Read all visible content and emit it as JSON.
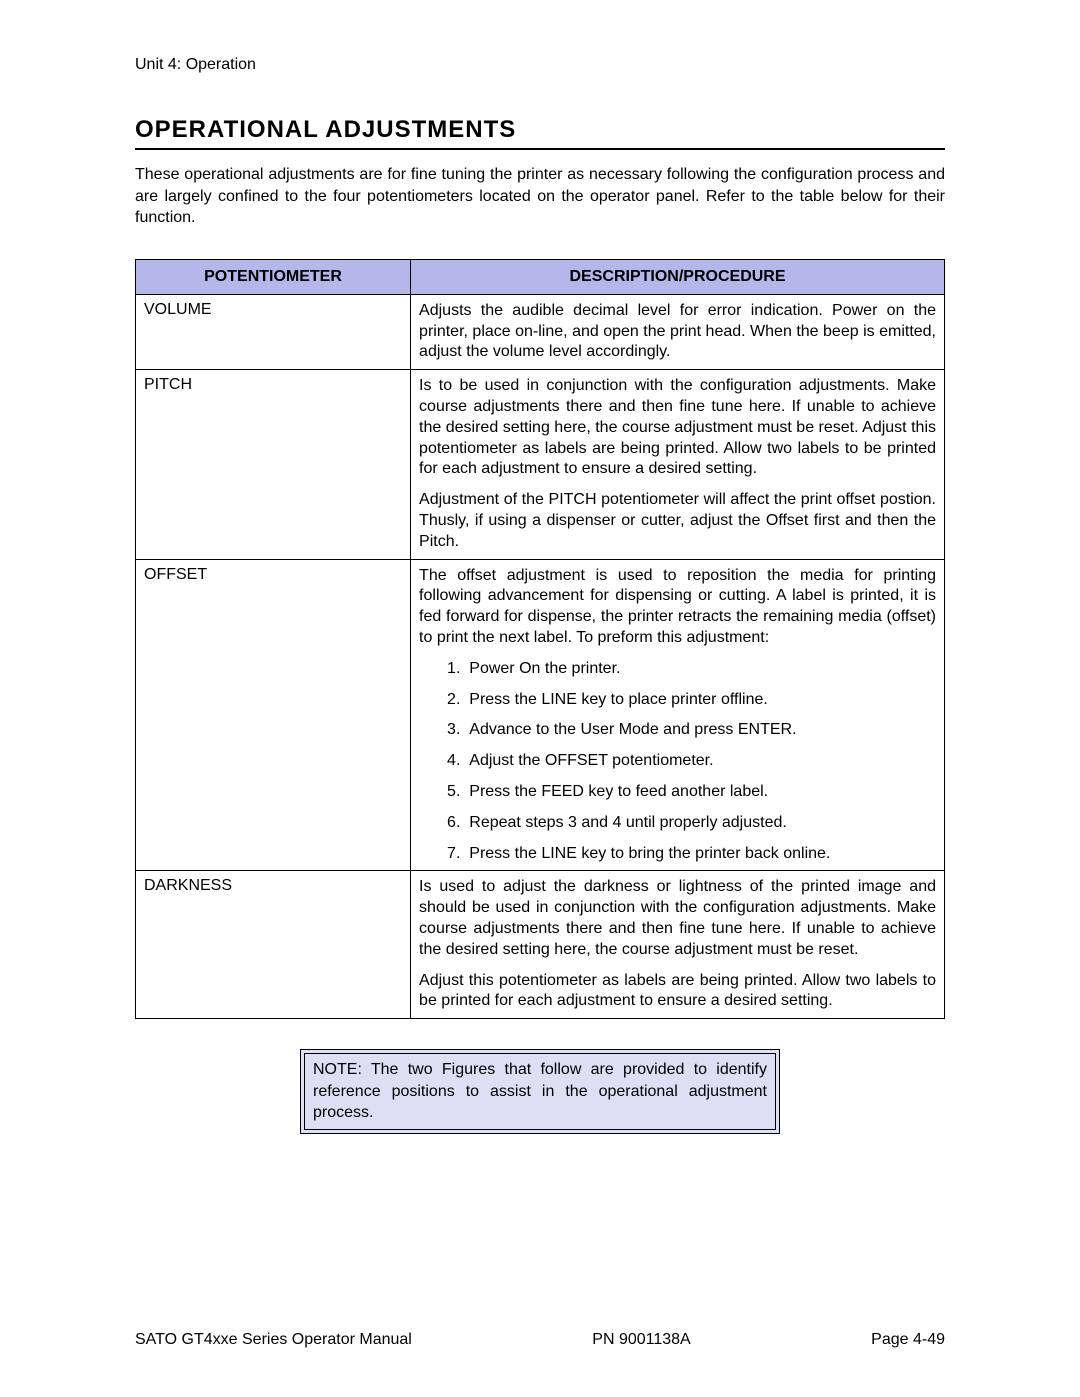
{
  "header": {
    "unit": "Unit 4:  Operation"
  },
  "section_title": "OPERATIONAL ADJUSTMENTS",
  "intro": "These operational adjustments are for fine tuning the printer as necessary following the configuration process and are largely confined to the four potentiometers located on the operator panel. Refer to the table below for their function.",
  "table": {
    "header_col1": "POTENTIOMETER",
    "header_col2": "DESCRIPTION/PROCEDURE",
    "header_bg": "#b5b6ea",
    "rows": [
      {
        "name": "VOLUME",
        "desc": [
          "Adjusts the audible decimal level for error indication. Power on the printer, place on-line, and open the print head. When the beep is emitted, adjust the volume level accordingly."
        ]
      },
      {
        "name": "PITCH",
        "desc": [
          "Is to be used in conjunction with the configuration adjustments. Make course adjustments there and then fine tune here. If unable to achieve the desired setting here, the course adjustment must be reset. Adjust this potentiometer as labels are being printed. Allow two labels to be printed for each adjustment to ensure a desired setting.",
          "Adjustment of the PITCH potentiometer will affect the print offset postion. Thusly, if using a dispenser or cutter, adjust the Offset first and then the Pitch."
        ]
      },
      {
        "name": "OFFSET",
        "desc_intro": "The offset adjustment is used to reposition the media for printing following advancement for dispensing or cutting. A label is printed, it is fed forward for dispense, the printer retracts the remaining media (offset) to print the next label. To preform this adjustment:",
        "steps": [
          "Power On the printer.",
          "Press the LINE key to place printer offline.",
          "Advance to the User Mode and press ENTER.",
          "Adjust the OFFSET potentiometer.",
          "Press the FEED key to feed another label.",
          "Repeat steps 3 and 4 until properly adjusted.",
          "Press the LINE key to bring the printer back online."
        ]
      },
      {
        "name": "DARKNESS",
        "desc": [
          "Is used to adjust the darkness or lightness of the printed image and should be used in conjunction with the configuration adjustments. Make course adjustments there and then fine tune here. If unable to achieve the desired setting here, the course adjustment must be reset.",
          "Adjust this potentiometer as labels are being printed. Allow two labels to be printed for each adjustment to ensure a desired setting."
        ]
      }
    ]
  },
  "note": {
    "text": "NOTE: The two Figures that follow are provided to identify reference positions to assist in the operational adjustment process.",
    "bg": "#dedff4"
  },
  "footer": {
    "left": "SATO GT4xxe Series Operator Manual",
    "center": "PN 9001138A",
    "right": "Page 4-49"
  }
}
